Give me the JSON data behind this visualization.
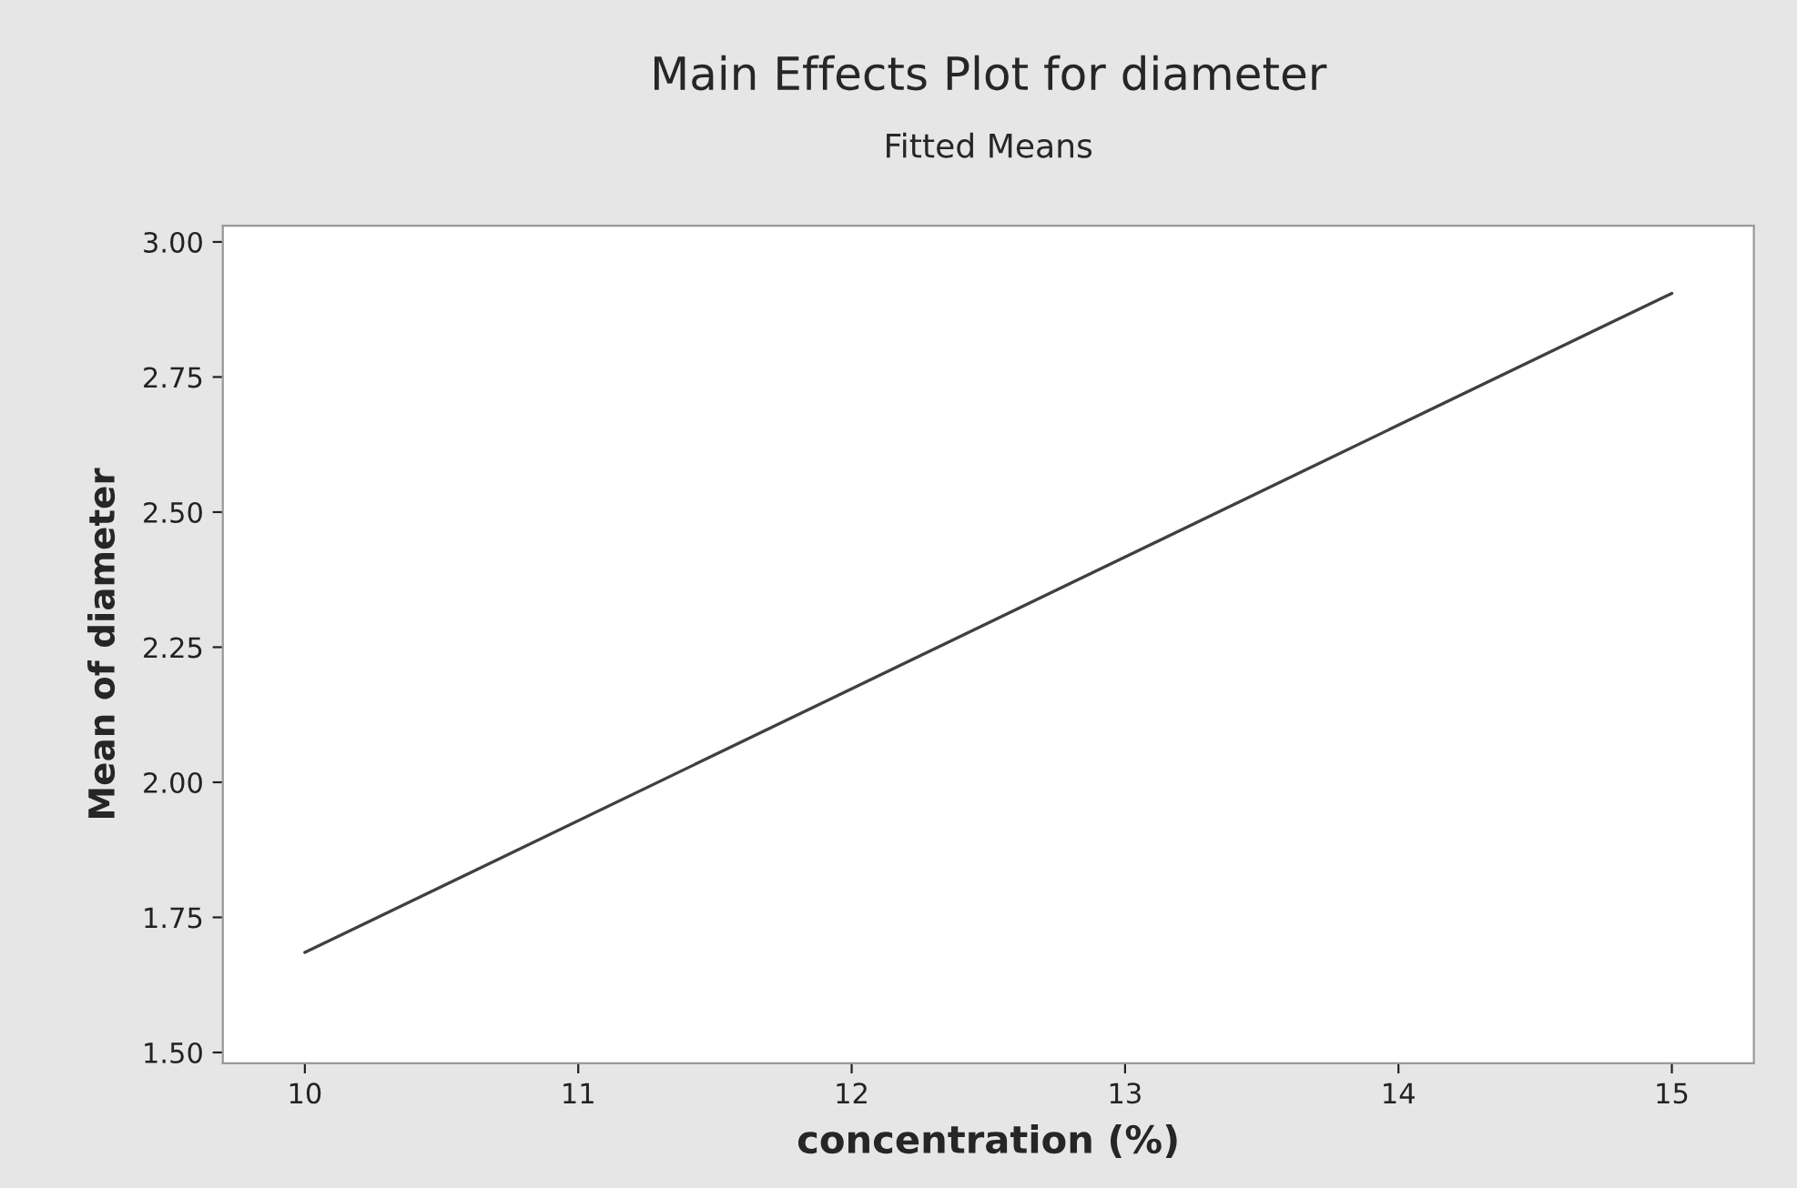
{
  "chart_data": {
    "type": "line",
    "title": "Main Effects Plot for diameter",
    "subtitle": "Fitted Means",
    "xlabel": "concentration (%)",
    "ylabel": "Mean of diameter",
    "x": [
      10,
      15
    ],
    "series": [
      {
        "color": "#404040",
        "values": [
          1.685,
          2.905
        ]
      }
    ],
    "xlim": [
      9.7,
      15.3
    ],
    "xticks": [
      10,
      11,
      12,
      13,
      14,
      15
    ],
    "ylim": [
      1.48,
      3.03
    ],
    "yticks": [
      {
        "value": 1.5,
        "label": "1.50"
      },
      {
        "value": 1.75,
        "label": "1.75"
      },
      {
        "value": 2.0,
        "label": "2.00"
      },
      {
        "value": 2.25,
        "label": "2.25"
      },
      {
        "value": 2.5,
        "label": "2.50"
      },
      {
        "value": 2.75,
        "label": "2.75"
      },
      {
        "value": 3.0,
        "label": "3.00"
      }
    ],
    "grid": false,
    "marker": "none",
    "line_style": "solid"
  }
}
